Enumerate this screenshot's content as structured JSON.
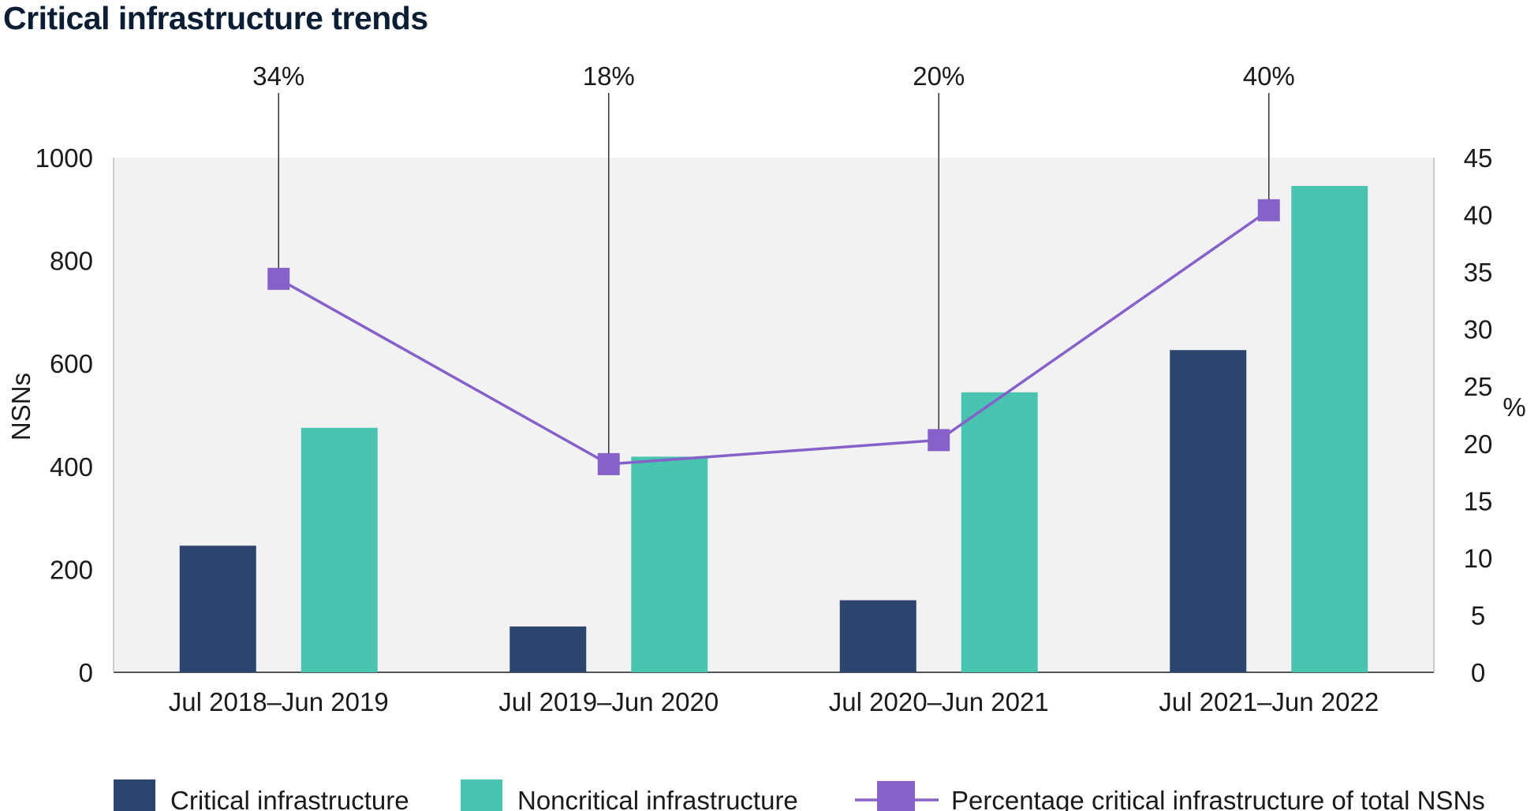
{
  "title": "Critical infrastructure trends",
  "chart_data": {
    "type": "bar",
    "categories": [
      "Jul 2018–Jun 2019",
      "Jul 2019–Jun 2020",
      "Jul 2020–Jun 2021",
      "Jul 2021–Jun 2022"
    ],
    "series": [
      {
        "name": "Critical infrastructure",
        "kind": "bar",
        "axis": "left",
        "color": "#2c446e",
        "values": [
          246,
          89,
          140,
          626
        ]
      },
      {
        "name": "Noncritical infrastructure",
        "kind": "bar",
        "axis": "left",
        "color": "#48c4b0",
        "values": [
          475,
          419,
          544,
          945
        ]
      },
      {
        "name": "Percentage critical infrastructure of total NSNs",
        "kind": "line",
        "axis": "right",
        "marker": "square",
        "color": "#8661c9",
        "values": [
          34.4,
          18.2,
          20.3,
          40.4
        ]
      }
    ],
    "callouts": [
      "34%",
      "18%",
      "20%",
      "40%"
    ],
    "ylabel": "NSNs",
    "ylim": [
      0,
      1000
    ],
    "yticks": [
      "0",
      "200",
      "400",
      "600",
      "800",
      "1000"
    ],
    "y2label": "%",
    "y2lim": [
      0,
      45
    ],
    "y2ticks": [
      "0",
      "5",
      "10",
      "15",
      "20",
      "25",
      "30",
      "35",
      "40",
      "45"
    ],
    "grid": false,
    "plot_background": "#f2f2f2",
    "legend_position": "bottom"
  }
}
